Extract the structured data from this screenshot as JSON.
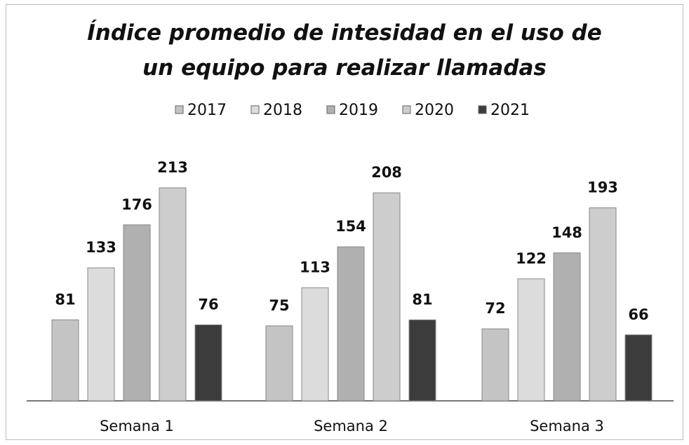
{
  "chart_data": {
    "type": "bar",
    "title": "Índice promedio de intesidad en el uso de un equipo para realizar llamadas",
    "categories": [
      "Semana 1",
      "Semana 2",
      "Semana 3"
    ],
    "series": [
      {
        "name": "2017",
        "color": "#c4c4c4",
        "values": [
          81,
          75,
          72
        ]
      },
      {
        "name": "2018",
        "color": "#dcdcdc",
        "values": [
          133,
          113,
          122
        ]
      },
      {
        "name": "2019",
        "color": "#b0b0b0",
        "values": [
          176,
          154,
          148
        ]
      },
      {
        "name": "2020",
        "color": "#cdcdcd",
        "values": [
          213,
          208,
          193
        ]
      },
      {
        "name": "2021",
        "color": "#3c3c3c",
        "values": [
          76,
          81,
          66
        ]
      }
    ],
    "legend": "top"
  }
}
